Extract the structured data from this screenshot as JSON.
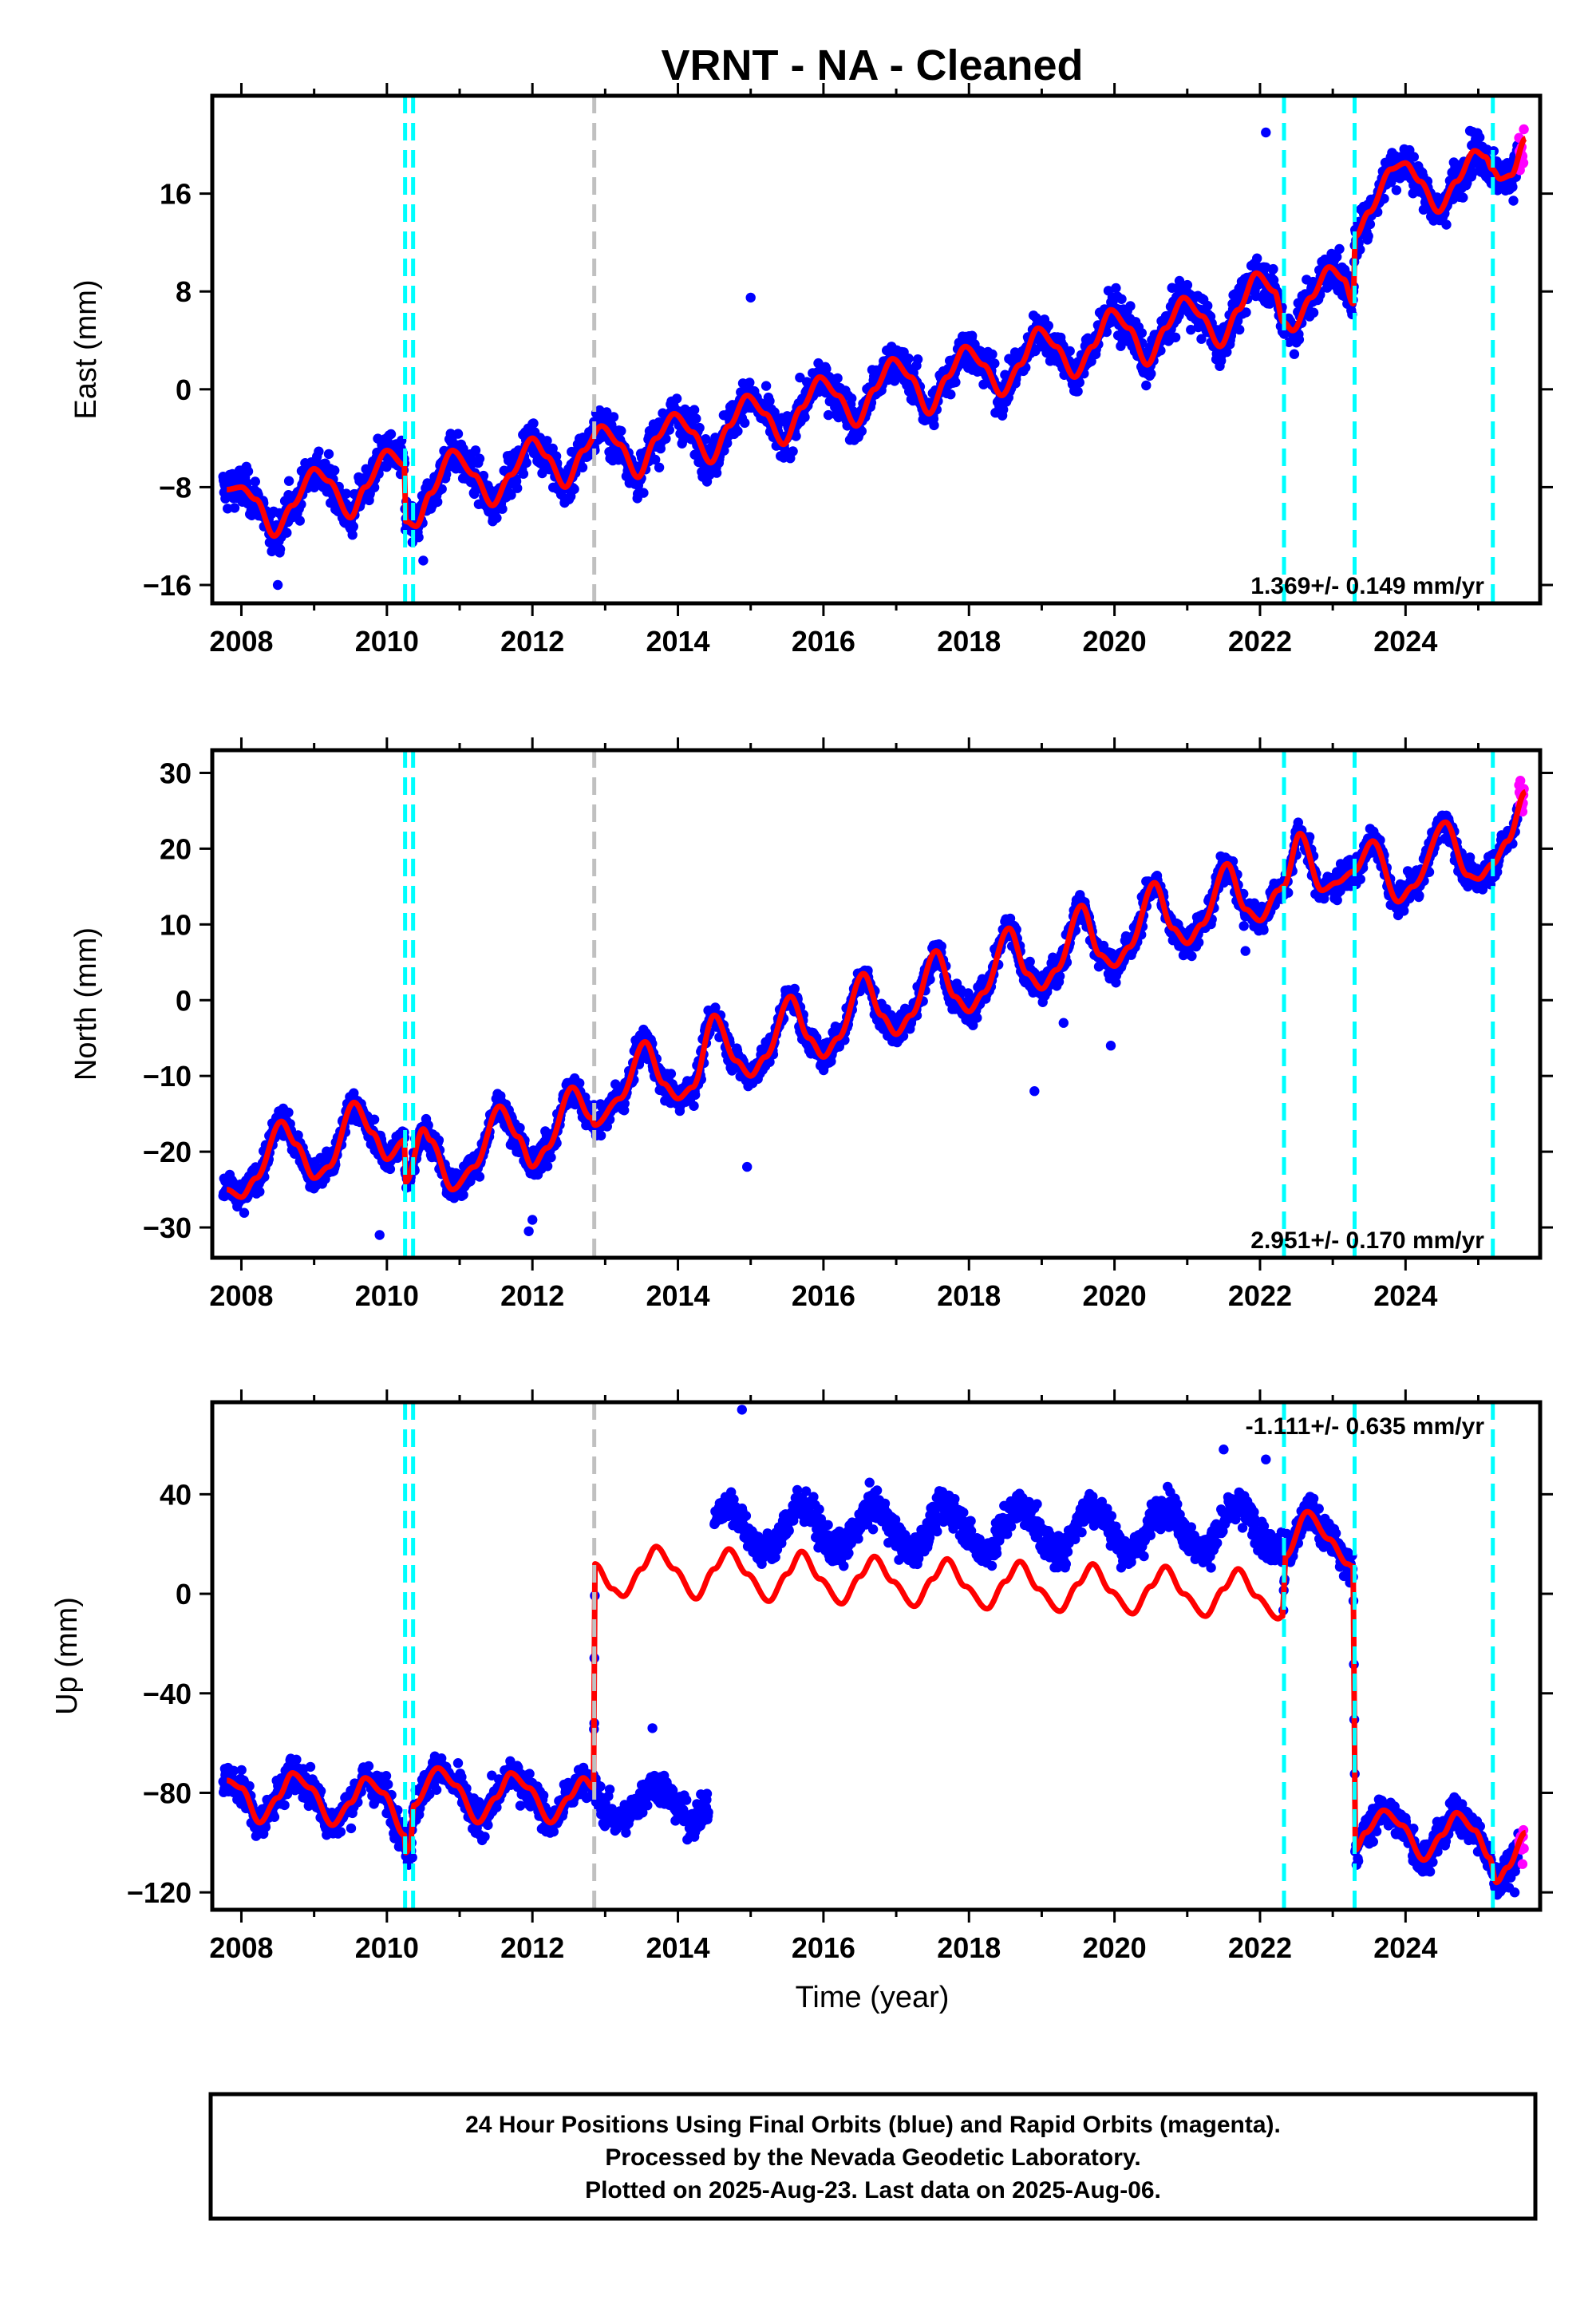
{
  "chart_data": {
    "type": "scatter",
    "title": "VRNT  - NA - Cleaned",
    "xlabel": "Time (year)",
    "xlim": [
      2007.6,
      2025.85
    ],
    "xticks": [
      2008,
      2010,
      2012,
      2014,
      2016,
      2018,
      2020,
      2022,
      2024
    ],
    "x_tick_labels": [
      "2008",
      "2010",
      "2012",
      "2014",
      "2016",
      "2018",
      "2020",
      "2022",
      "2024"
    ],
    "colors": {
      "final_points": "#0000ff",
      "rapid_points": "#ff00ff",
      "model": "#ff0000",
      "equipment_lines": "#00ffff",
      "earthquake_lines": "#c0c0c0",
      "frame": "#000000"
    },
    "vertical_lines": {
      "cyan_dashed": [
        2010.25,
        2010.36,
        2022.33,
        2023.3,
        2025.2
      ],
      "gray_dashed": [
        2012.85
      ]
    },
    "panels": [
      {
        "name": "east",
        "ylabel": "East (mm)",
        "ylim": [
          -17.5,
          24
        ],
        "yticks": [
          -16,
          -8,
          0,
          8,
          16
        ],
        "y_tick_labels": [
          "−16",
          "−8",
          "0",
          "8",
          "16"
        ],
        "rate_text": "1.369+/- 0.149 mm/yr",
        "rate_position": "bottom-right",
        "model_knots": [
          [
            2007.8,
            -8.2
          ],
          [
            2008.0,
            -8.0
          ],
          [
            2008.2,
            -9.0
          ],
          [
            2008.45,
            -12.0
          ],
          [
            2008.7,
            -9.5
          ],
          [
            2009.0,
            -6.5
          ],
          [
            2009.2,
            -7.5
          ],
          [
            2009.5,
            -10.5
          ],
          [
            2009.7,
            -8.0
          ],
          [
            2010.0,
            -5.0
          ],
          [
            2010.24,
            -6.2
          ],
          [
            2010.26,
            -10.8
          ],
          [
            2010.4,
            -11.2
          ],
          [
            2010.6,
            -8.5
          ],
          [
            2010.9,
            -5.0
          ],
          [
            2011.2,
            -7.0
          ],
          [
            2011.45,
            -9.5
          ],
          [
            2011.7,
            -7.0
          ],
          [
            2012.0,
            -4.0
          ],
          [
            2012.2,
            -5.5
          ],
          [
            2012.45,
            -8.0
          ],
          [
            2012.7,
            -5.0
          ],
          [
            2012.95,
            -3.0
          ],
          [
            2013.2,
            -4.5
          ],
          [
            2013.45,
            -7.2
          ],
          [
            2013.7,
            -4.0
          ],
          [
            2013.95,
            -2.0
          ],
          [
            2014.2,
            -3.5
          ],
          [
            2014.45,
            -6.0
          ],
          [
            2014.7,
            -3.0
          ],
          [
            2014.95,
            -0.5
          ],
          [
            2015.2,
            -2.0
          ],
          [
            2015.45,
            -4.5
          ],
          [
            2015.7,
            -1.5
          ],
          [
            2015.95,
            1.0
          ],
          [
            2016.2,
            -0.5
          ],
          [
            2016.45,
            -3.0
          ],
          [
            2016.7,
            0.0
          ],
          [
            2016.95,
            2.5
          ],
          [
            2017.2,
            1.0
          ],
          [
            2017.45,
            -2.0
          ],
          [
            2017.7,
            1.0
          ],
          [
            2017.95,
            3.5
          ],
          [
            2018.2,
            2.0
          ],
          [
            2018.45,
            -0.5
          ],
          [
            2018.7,
            2.0
          ],
          [
            2018.95,
            5.0
          ],
          [
            2019.2,
            3.5
          ],
          [
            2019.45,
            1.0
          ],
          [
            2019.7,
            3.5
          ],
          [
            2019.95,
            6.5
          ],
          [
            2020.2,
            5.0
          ],
          [
            2020.45,
            2.0
          ],
          [
            2020.7,
            5.0
          ],
          [
            2020.95,
            7.5
          ],
          [
            2021.2,
            6.0
          ],
          [
            2021.45,
            3.5
          ],
          [
            2021.7,
            6.5
          ],
          [
            2021.95,
            9.5
          ],
          [
            2022.2,
            8.0
          ],
          [
            2022.32,
            5.5
          ],
          [
            2022.45,
            4.8
          ],
          [
            2022.7,
            7.5
          ],
          [
            2022.95,
            10.0
          ],
          [
            2023.15,
            9.0
          ],
          [
            2023.28,
            7.0
          ],
          [
            2023.31,
            12.5
          ],
          [
            2023.5,
            14.5
          ],
          [
            2023.8,
            18.0
          ],
          [
            2024.0,
            18.5
          ],
          [
            2024.2,
            17.0
          ],
          [
            2024.45,
            14.5
          ],
          [
            2024.7,
            17.0
          ],
          [
            2024.95,
            19.5
          ],
          [
            2025.1,
            19.0
          ],
          [
            2025.19,
            18.0
          ],
          [
            2025.3,
            17.2
          ],
          [
            2025.45,
            17.5
          ],
          [
            2025.65,
            20.5
          ]
        ],
        "outliers": [
          [
            2022.08,
            21.0
          ],
          [
            2015.0,
            7.5
          ],
          [
            2010.5,
            -14.0
          ],
          [
            2008.5,
            -16.0
          ]
        ]
      },
      {
        "name": "north",
        "ylabel": "North (mm)",
        "ylim": [
          -34,
          33
        ],
        "yticks": [
          -30,
          -20,
          -10,
          0,
          10,
          20,
          30
        ],
        "y_tick_labels": [
          "−30",
          "−20",
          "−10",
          "0",
          "10",
          "20",
          "30"
        ],
        "rate_text": "2.951+/- 0.170 mm/yr",
        "rate_position": "bottom-right",
        "model_knots": [
          [
            2007.8,
            -25.0
          ],
          [
            2008.0,
            -26.0
          ],
          [
            2008.2,
            -23.5
          ],
          [
            2008.55,
            -16.0
          ],
          [
            2008.75,
            -19.0
          ],
          [
            2009.0,
            -23.5
          ],
          [
            2009.2,
            -22.0
          ],
          [
            2009.55,
            -13.5
          ],
          [
            2009.8,
            -17.5
          ],
          [
            2010.0,
            -21.0
          ],
          [
            2010.24,
            -18.5
          ],
          [
            2010.26,
            -24.0
          ],
          [
            2010.5,
            -17.0
          ],
          [
            2010.6,
            -18.5
          ],
          [
            2010.9,
            -25.0
          ],
          [
            2011.2,
            -22.0
          ],
          [
            2011.55,
            -14.0
          ],
          [
            2011.8,
            -18.0
          ],
          [
            2012.0,
            -22.0
          ],
          [
            2012.2,
            -19.5
          ],
          [
            2012.55,
            -11.5
          ],
          [
            2012.8,
            -15.5
          ],
          [
            2012.86,
            -16.5
          ],
          [
            2013.2,
            -13.0
          ],
          [
            2013.55,
            -5.5
          ],
          [
            2013.8,
            -11.0
          ],
          [
            2014.0,
            -13.0
          ],
          [
            2014.2,
            -11.5
          ],
          [
            2014.5,
            -2.0
          ],
          [
            2014.8,
            -8.0
          ],
          [
            2015.0,
            -10.0
          ],
          [
            2015.2,
            -7.5
          ],
          [
            2015.55,
            0.5
          ],
          [
            2015.8,
            -5.0
          ],
          [
            2016.0,
            -7.5
          ],
          [
            2016.2,
            -5.0
          ],
          [
            2016.55,
            3.5
          ],
          [
            2016.8,
            -2.0
          ],
          [
            2017.0,
            -4.5
          ],
          [
            2017.2,
            -2.0
          ],
          [
            2017.55,
            6.5
          ],
          [
            2017.8,
            0.5
          ],
          [
            2018.0,
            -1.5
          ],
          [
            2018.2,
            1.0
          ],
          [
            2018.55,
            9.5
          ],
          [
            2018.8,
            3.5
          ],
          [
            2019.0,
            1.5
          ],
          [
            2019.2,
            4.0
          ],
          [
            2019.55,
            12.5
          ],
          [
            2019.8,
            6.0
          ],
          [
            2020.0,
            4.5
          ],
          [
            2020.2,
            7.0
          ],
          [
            2020.55,
            15.5
          ],
          [
            2020.8,
            9.5
          ],
          [
            2021.0,
            7.5
          ],
          [
            2021.2,
            10.0
          ],
          [
            2021.55,
            18.0
          ],
          [
            2021.8,
            12.0
          ],
          [
            2022.0,
            10.5
          ],
          [
            2022.25,
            14.5
          ],
          [
            2022.32,
            15.0
          ],
          [
            2022.55,
            22.0
          ],
          [
            2022.85,
            14.5
          ],
          [
            2023.05,
            15.5
          ],
          [
            2023.29,
            17.0
          ],
          [
            2023.55,
            21.0
          ],
          [
            2023.9,
            13.0
          ],
          [
            2024.1,
            15.0
          ],
          [
            2024.55,
            23.5
          ],
          [
            2024.85,
            16.5
          ],
          [
            2025.0,
            16.0
          ],
          [
            2025.2,
            18.0
          ],
          [
            2025.4,
            21.0
          ],
          [
            2025.65,
            27.5
          ]
        ],
        "outliers": [
          [
            2009.9,
            -31.0
          ],
          [
            2012.0,
            -29.0
          ],
          [
            2011.95,
            -30.5
          ],
          [
            2014.95,
            -22.0
          ],
          [
            2018.9,
            -12.0
          ],
          [
            2019.95,
            -6.0
          ],
          [
            2021.8,
            6.5
          ],
          [
            2019.3,
            -3.0
          ]
        ]
      },
      {
        "name": "up",
        "ylabel": "Up (mm)",
        "ylim": [
          -127,
          77
        ],
        "yticks": [
          -120,
          -80,
          -40,
          0,
          40
        ],
        "y_tick_labels": [
          "−120",
          "−80",
          "−40",
          "0",
          "40"
        ],
        "rate_text": "-1.111+/- 0.635 mm/yr",
        "rate_position": "top-right",
        "model_knots": [
          [
            2007.8,
            -75.0
          ],
          [
            2008.0,
            -78.0
          ],
          [
            2008.25,
            -92.0
          ],
          [
            2008.5,
            -82.0
          ],
          [
            2008.7,
            -72.0
          ],
          [
            2008.95,
            -78.0
          ],
          [
            2009.25,
            -93.0
          ],
          [
            2009.5,
            -84.0
          ],
          [
            2009.7,
            -74.0
          ],
          [
            2009.95,
            -80.0
          ],
          [
            2010.24,
            -97.0
          ],
          [
            2010.26,
            -104.0
          ],
          [
            2010.32,
            -102.0
          ],
          [
            2010.37,
            -85.0
          ],
          [
            2010.7,
            -70.0
          ],
          [
            2010.95,
            -77.0
          ],
          [
            2011.25,
            -92.0
          ],
          [
            2011.5,
            -82.0
          ],
          [
            2011.7,
            -72.0
          ],
          [
            2011.95,
            -78.0
          ],
          [
            2012.25,
            -92.0
          ],
          [
            2012.5,
            -82.0
          ],
          [
            2012.7,
            -74.0
          ],
          [
            2012.84,
            -78.0
          ],
          [
            2012.86,
            12.0
          ],
          [
            2013.1,
            2.0
          ],
          [
            2013.25,
            -1.0
          ],
          [
            2013.5,
            10.0
          ],
          [
            2013.7,
            19.0
          ],
          [
            2013.95,
            10.0
          ],
          [
            2014.25,
            -2.0
          ],
          [
            2014.5,
            10.0
          ],
          [
            2014.7,
            18.0
          ],
          [
            2014.95,
            8.0
          ],
          [
            2015.25,
            -3.0
          ],
          [
            2015.5,
            8.0
          ],
          [
            2015.7,
            17.0
          ],
          [
            2015.95,
            6.0
          ],
          [
            2016.25,
            -4.0
          ],
          [
            2016.5,
            7.0
          ],
          [
            2016.7,
            15.0
          ],
          [
            2016.95,
            5.0
          ],
          [
            2017.25,
            -5.0
          ],
          [
            2017.5,
            6.0
          ],
          [
            2017.7,
            14.0
          ],
          [
            2017.95,
            3.0
          ],
          [
            2018.25,
            -6.0
          ],
          [
            2018.5,
            5.0
          ],
          [
            2018.7,
            13.0
          ],
          [
            2018.95,
            2.0
          ],
          [
            2019.25,
            -7.0
          ],
          [
            2019.5,
            4.0
          ],
          [
            2019.7,
            12.0
          ],
          [
            2019.95,
            1.0
          ],
          [
            2020.25,
            -8.0
          ],
          [
            2020.5,
            3.0
          ],
          [
            2020.7,
            11.0
          ],
          [
            2020.95,
            0.0
          ],
          [
            2021.25,
            -9.0
          ],
          [
            2021.5,
            2.0
          ],
          [
            2021.7,
            10.0
          ],
          [
            2021.95,
            -1.0
          ],
          [
            2022.25,
            -10.0
          ],
          [
            2022.31,
            -9.0
          ],
          [
            2022.35,
            15.0
          ],
          [
            2022.65,
            33.0
          ],
          [
            2022.95,
            22.0
          ],
          [
            2023.2,
            12.0
          ],
          [
            2023.28,
            11.0
          ],
          [
            2023.31,
            -103.0
          ],
          [
            2023.45,
            -96.0
          ],
          [
            2023.7,
            -87.0
          ],
          [
            2023.95,
            -93.0
          ],
          [
            2024.25,
            -107.0
          ],
          [
            2024.5,
            -97.0
          ],
          [
            2024.7,
            -88.0
          ],
          [
            2024.95,
            -95.0
          ],
          [
            2025.15,
            -106.0
          ],
          [
            2025.25,
            -116.0
          ],
          [
            2025.4,
            -110.0
          ],
          [
            2025.65,
            -96.0
          ]
        ],
        "outliers": [
          [
            2014.88,
            74.0
          ],
          [
            2021.5,
            58.0
          ],
          [
            2022.08,
            54.0
          ],
          [
            2012.85,
            -52.0
          ],
          [
            2013.65,
            -54.0
          ],
          [
            2010.35,
            -106.0
          ],
          [
            2025.5,
            -120.0
          ]
        ]
      }
    ]
  },
  "footer": {
    "line1": "24 Hour Positions Using Final Orbits (blue) and Rapid Orbits (magenta).",
    "line2": "Processed by the Nevada Geodetic Laboratory.",
    "line3": "Plotted on 2025-Aug-23. Last data on 2025-Aug-06."
  }
}
